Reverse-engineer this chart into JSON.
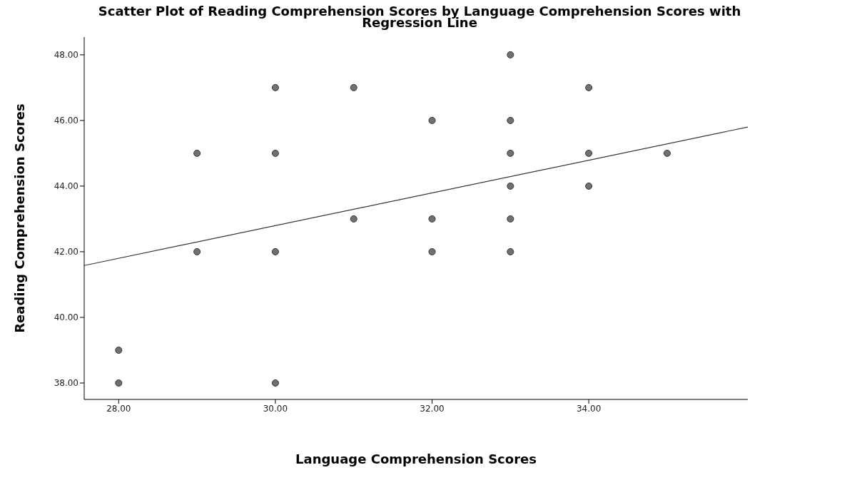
{
  "chart_data": {
    "type": "scatter",
    "title": "Scatter Plot of Reading Comprehension Scores by Language Comprehension Scores with Regression Line",
    "xlabel": "Language Comprehension Scores",
    "ylabel": "Reading Comprehension Scores",
    "xlim": [
      27.56,
      36.03
    ],
    "ylim": [
      37.5,
      48.54
    ],
    "xticks": [
      {
        "value": 28,
        "label": "28.00"
      },
      {
        "value": 30,
        "label": "30.00"
      },
      {
        "value": 32,
        "label": "32.00"
      },
      {
        "value": 34,
        "label": "34.00"
      }
    ],
    "yticks": [
      {
        "value": 38,
        "label": "38.00"
      },
      {
        "value": 40,
        "label": "40.00"
      },
      {
        "value": 42,
        "label": "42.00"
      },
      {
        "value": 44,
        "label": "44.00"
      },
      {
        "value": 46,
        "label": "46.00"
      },
      {
        "value": 48,
        "label": "48.00"
      }
    ],
    "grid": false,
    "marker": "circle",
    "series": [
      {
        "color": "#707070",
        "x": [
          28,
          28,
          29,
          29,
          30,
          30,
          30,
          30,
          31,
          31,
          32,
          32,
          32,
          33,
          33,
          33,
          33,
          33,
          33,
          34,
          34,
          34,
          35
        ],
        "values": [
          39,
          38,
          45,
          42,
          47,
          45,
          42,
          38,
          47,
          43,
          46,
          43,
          42,
          48,
          46,
          45,
          44,
          43,
          42,
          47,
          45,
          44,
          45
        ]
      },
      {
        "type": "line",
        "color": "#333333",
        "line_style": "solid",
        "marker": "none",
        "x": [
          27.56,
          36.03
        ],
        "values": [
          41.58,
          45.8
        ]
      }
    ]
  }
}
